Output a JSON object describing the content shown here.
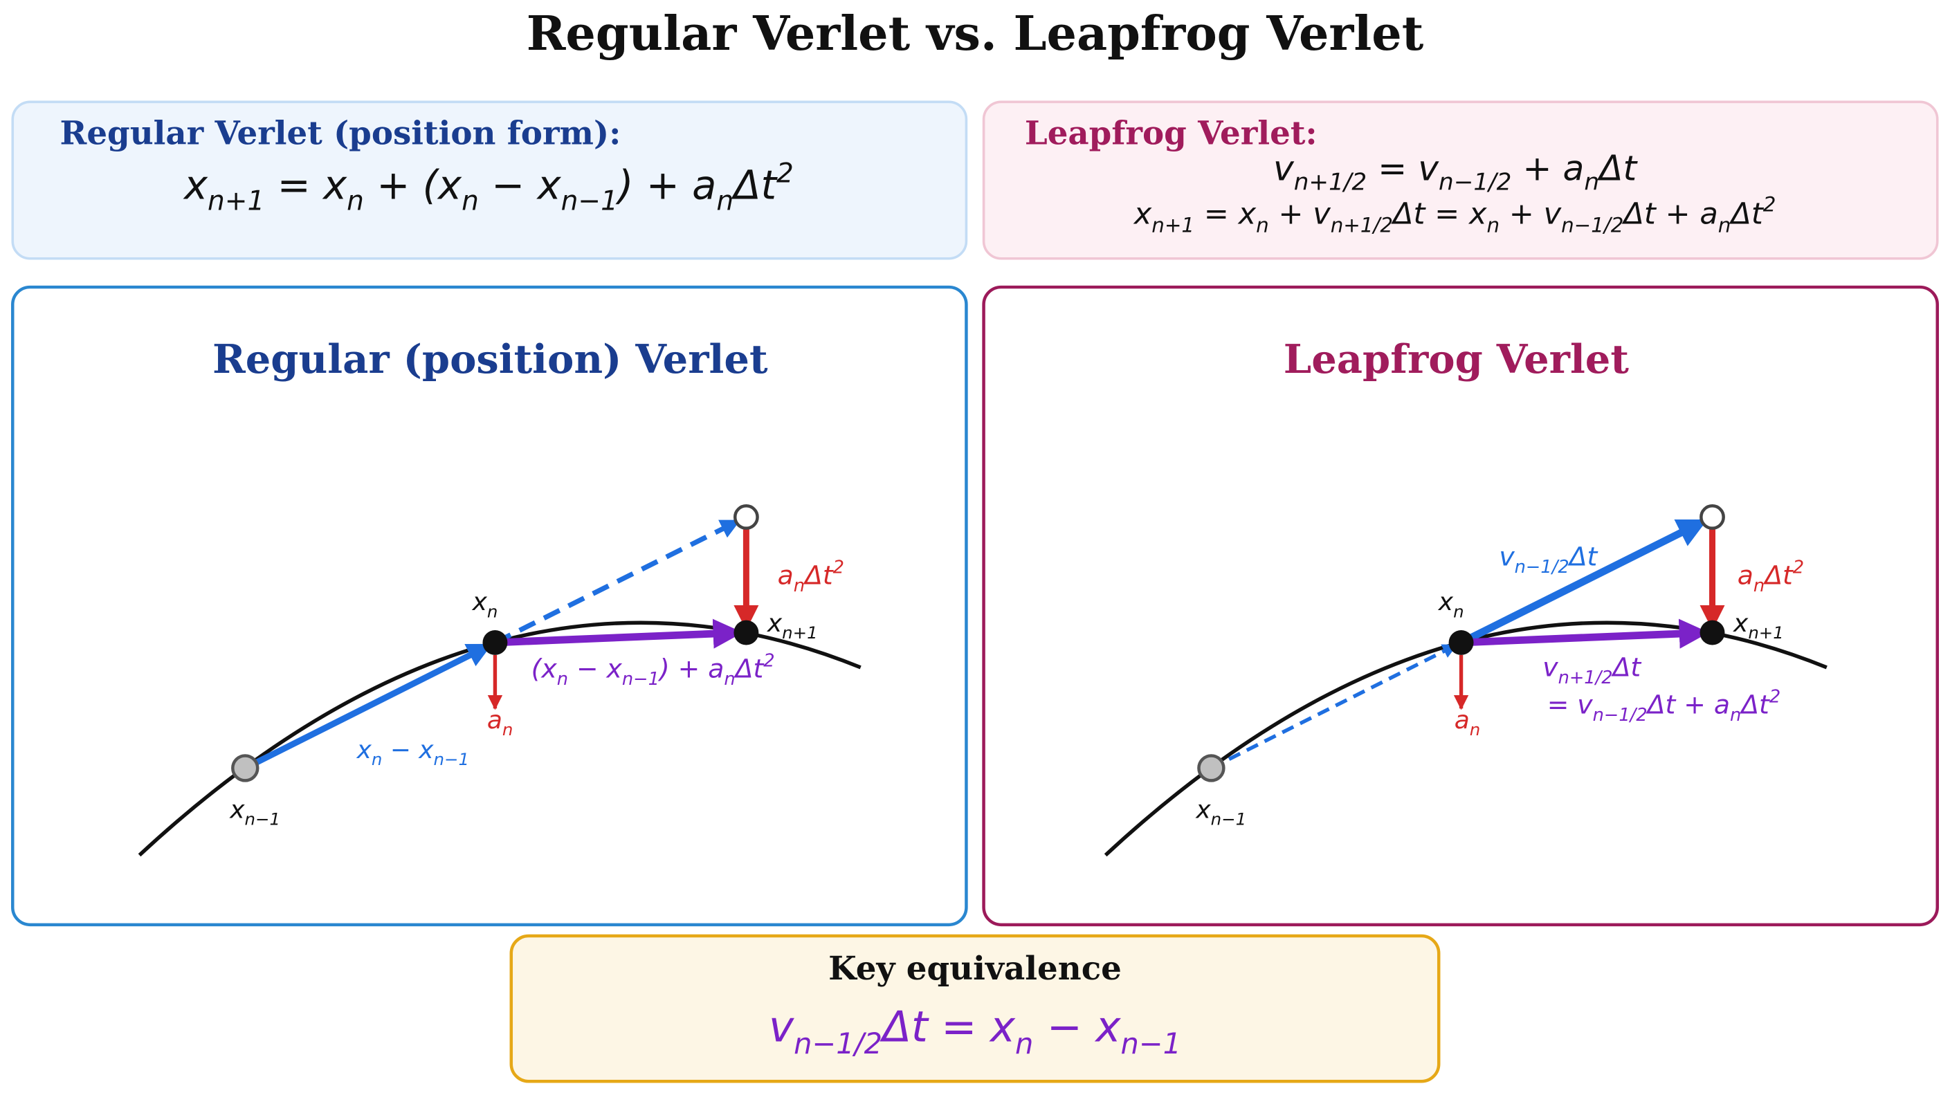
{
  "title": "Regular Verlet vs. Leapfrog Verlet",
  "regular_formula_box": {
    "heading": "Regular Verlet (position form):",
    "formula": [
      {
        "t": "x",
        "sub": "n+1"
      },
      " = ",
      {
        "t": "x",
        "sub": "n"
      },
      " + (",
      {
        "t": "x",
        "sub": "n"
      },
      " − ",
      {
        "t": "x",
        "sub": "n−1"
      },
      ") + ",
      {
        "t": "a",
        "sub": "n"
      },
      {
        "t": "Δt",
        "sup": "2"
      }
    ]
  },
  "leapfrog_formula_box": {
    "heading": "Leapfrog Verlet:",
    "formulas": [
      [
        {
          "t": "v",
          "sub": "n+1/2"
        },
        " = ",
        {
          "t": "v",
          "sub": "n−1/2"
        },
        " + ",
        {
          "t": "a",
          "sub": "n"
        },
        "Δt"
      ],
      [
        {
          "t": "x",
          "sub": "n+1"
        },
        " = ",
        {
          "t": "x",
          "sub": "n"
        },
        " + ",
        {
          "t": "v",
          "sub": "n+1/2"
        },
        "Δt = ",
        {
          "t": "x",
          "sub": "n"
        },
        " + ",
        {
          "t": "v",
          "sub": "n−1/2"
        },
        "Δt + ",
        {
          "t": "a",
          "sub": "n"
        },
        {
          "t": "Δt",
          "sup": "2"
        }
      ]
    ]
  },
  "regular_panel": {
    "title": "Regular (position) Verlet",
    "labels": {
      "x_prev": [
        {
          "t": "x",
          "sub": "n−1"
        }
      ],
      "x_cur": [
        {
          "t": "x",
          "sub": "n"
        }
      ],
      "x_next": [
        {
          "t": "x",
          "sub": "n+1"
        }
      ],
      "displacement": [
        {
          "t": "x",
          "sub": "n"
        },
        " − ",
        {
          "t": "x",
          "sub": "n−1"
        }
      ],
      "step": [
        "(",
        {
          "t": "x",
          "sub": "n"
        },
        " − ",
        {
          "t": "x",
          "sub": "n−1"
        },
        ") + ",
        {
          "t": "a",
          "sub": "n"
        },
        {
          "t": "Δt",
          "sup": "2"
        }
      ],
      "correction": [
        {
          "t": "a",
          "sub": "n"
        },
        {
          "t": "Δt",
          "sup": "2"
        }
      ],
      "acceleration": [
        {
          "t": "a",
          "sub": "n"
        }
      ]
    }
  },
  "leapfrog_panel": {
    "title": "Leapfrog Verlet",
    "labels": {
      "x_prev": [
        {
          "t": "x",
          "sub": "n−1"
        }
      ],
      "x_cur": [
        {
          "t": "x",
          "sub": "n"
        }
      ],
      "x_next": [
        {
          "t": "x",
          "sub": "n+1"
        }
      ],
      "drift": [
        {
          "t": "v",
          "sub": "n−1/2"
        },
        "Δt"
      ],
      "step": [
        {
          "t": "v",
          "sub": "n+1/2"
        },
        "Δt"
      ],
      "step_expanded": [
        "= ",
        {
          "t": "v",
          "sub": "n−1/2"
        },
        "Δt + ",
        {
          "t": "a",
          "sub": "n"
        },
        {
          "t": "Δt",
          "sup": "2"
        }
      ],
      "correction": [
        {
          "t": "a",
          "sub": "n"
        },
        {
          "t": "Δt",
          "sup": "2"
        }
      ],
      "acceleration": [
        {
          "t": "a",
          "sub": "n"
        }
      ]
    }
  },
  "key_box": {
    "heading": "Key equivalence",
    "formula": [
      {
        "t": "v",
        "sub": "n−1/2"
      },
      "Δt = ",
      {
        "t": "x",
        "sub": "n"
      },
      " − ",
      {
        "t": "x",
        "sub": "n−1"
      }
    ]
  }
}
